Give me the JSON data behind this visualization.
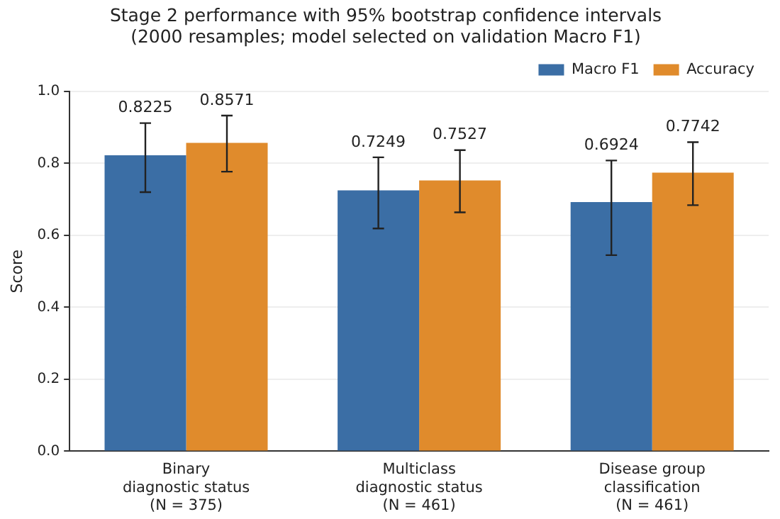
{
  "chart_data": {
    "type": "bar",
    "title": "Stage 2 performance with 95% bootstrap confidence intervals\n(2000 resamples; model selected on validation Macro F1)",
    "ylabel": "Score",
    "categories": [
      "Binary\ndiagnostic status\n(N = 375)",
      "Multiclass\ndiagnostic status\n(N = 461)",
      "Disease group\nclassification\n(N = 461)"
    ],
    "series": [
      {
        "name": "Macro F1",
        "color": "#3b6ea5",
        "values": [
          0.8225,
          0.7249,
          0.6924
        ],
        "errors": [
          [
            0.72,
            0.912
          ],
          [
            0.619,
            0.817
          ],
          [
            0.545,
            0.808
          ]
        ]
      },
      {
        "name": "Accuracy",
        "color": "#e08b2c",
        "values": [
          0.8571,
          0.7527,
          0.7742
        ],
        "errors": [
          [
            0.777,
            0.933
          ],
          [
            0.664,
            0.837
          ],
          [
            0.684,
            0.859
          ]
        ]
      }
    ],
    "ylim": [
      0,
      1.0
    ],
    "yticks": [
      {
        "value": 0,
        "label": "0.0"
      },
      {
        "value": 0.2,
        "label": "0.2"
      },
      {
        "value": 0.4,
        "label": "0.4"
      },
      {
        "value": 0.6,
        "label": "0.6"
      },
      {
        "value": 0.8,
        "label": "0.8"
      },
      {
        "value": 1.0,
        "label": "1.0"
      }
    ],
    "grid": "y",
    "legend": "top right",
    "data_labels": true
  }
}
